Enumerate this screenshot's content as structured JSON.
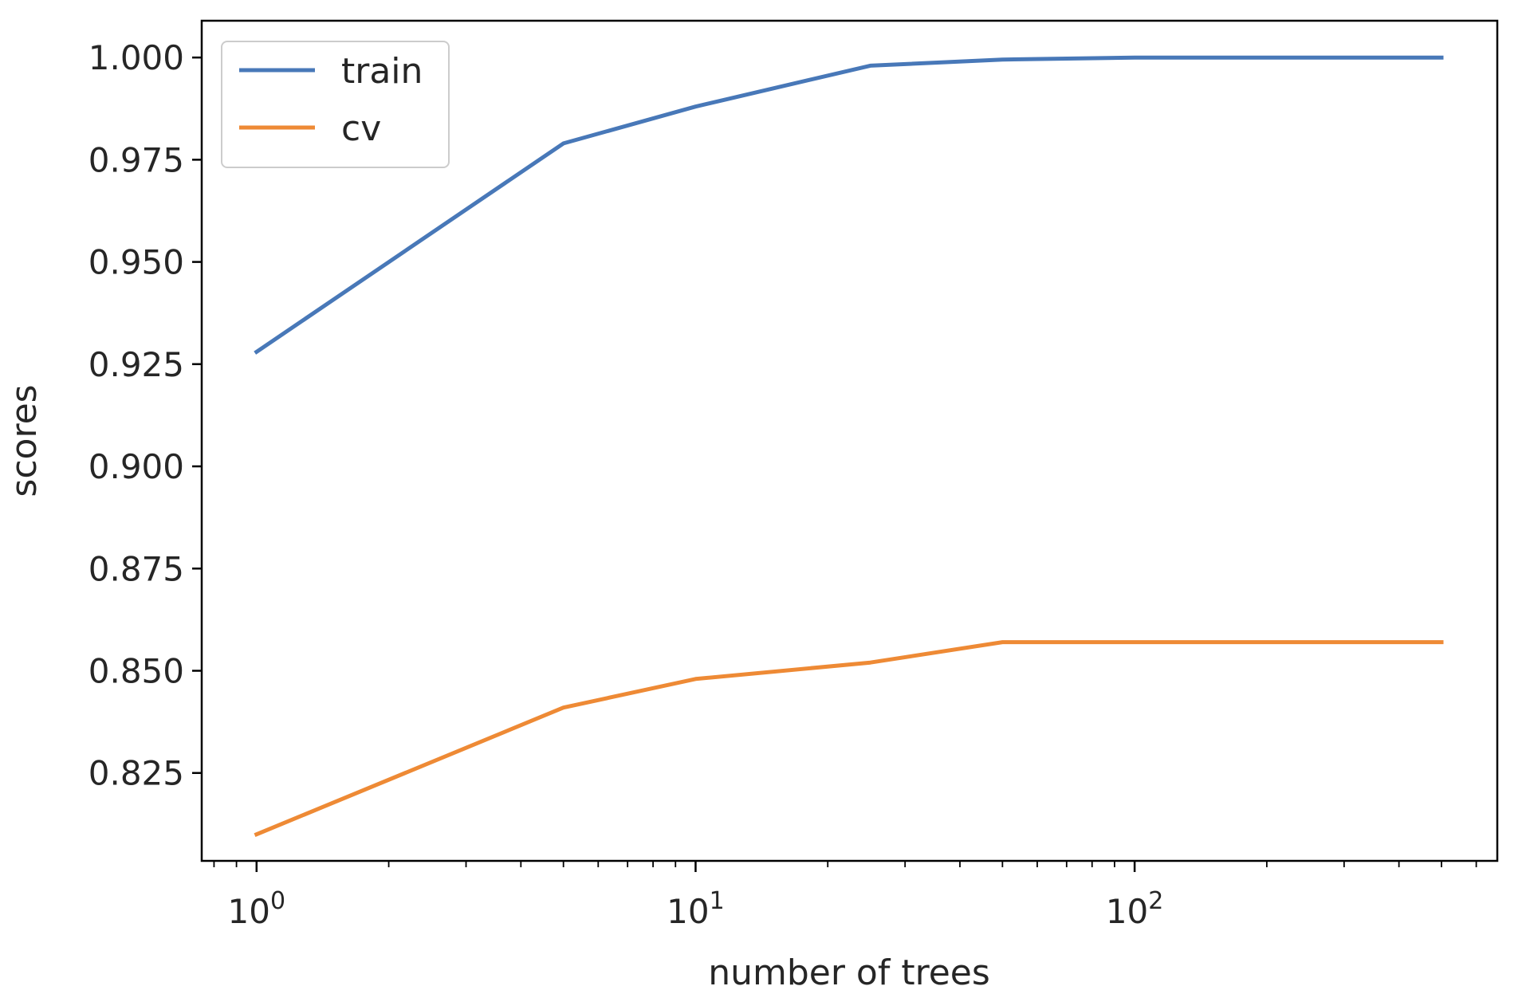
{
  "chart_data": {
    "type": "line",
    "title": "",
    "xlabel": "number of trees",
    "ylabel": "scores",
    "xscale": "log",
    "xlim": [
      0.75,
      670
    ],
    "ylim": [
      0.8035,
      1.009
    ],
    "x_ticks": [
      {
        "value": 1,
        "base": "10",
        "exp": "0"
      },
      {
        "value": 10,
        "base": "10",
        "exp": "1"
      },
      {
        "value": 100,
        "base": "10",
        "exp": "2"
      }
    ],
    "y_ticks": [
      "0.825",
      "0.850",
      "0.875",
      "0.900",
      "0.925",
      "0.950",
      "0.975",
      "1.000"
    ],
    "grid": false,
    "legend_position": "top-left",
    "x": [
      1,
      5,
      10,
      25,
      50,
      100,
      500
    ],
    "series": [
      {
        "name": "train",
        "color": "#4878b8",
        "values": [
          0.928,
          0.979,
          0.988,
          0.998,
          0.9995,
          1.0,
          1.0
        ]
      },
      {
        "name": "cv",
        "color": "#ee8a35",
        "values": [
          0.81,
          0.841,
          0.848,
          0.852,
          0.857,
          0.857,
          0.857
        ]
      }
    ]
  }
}
